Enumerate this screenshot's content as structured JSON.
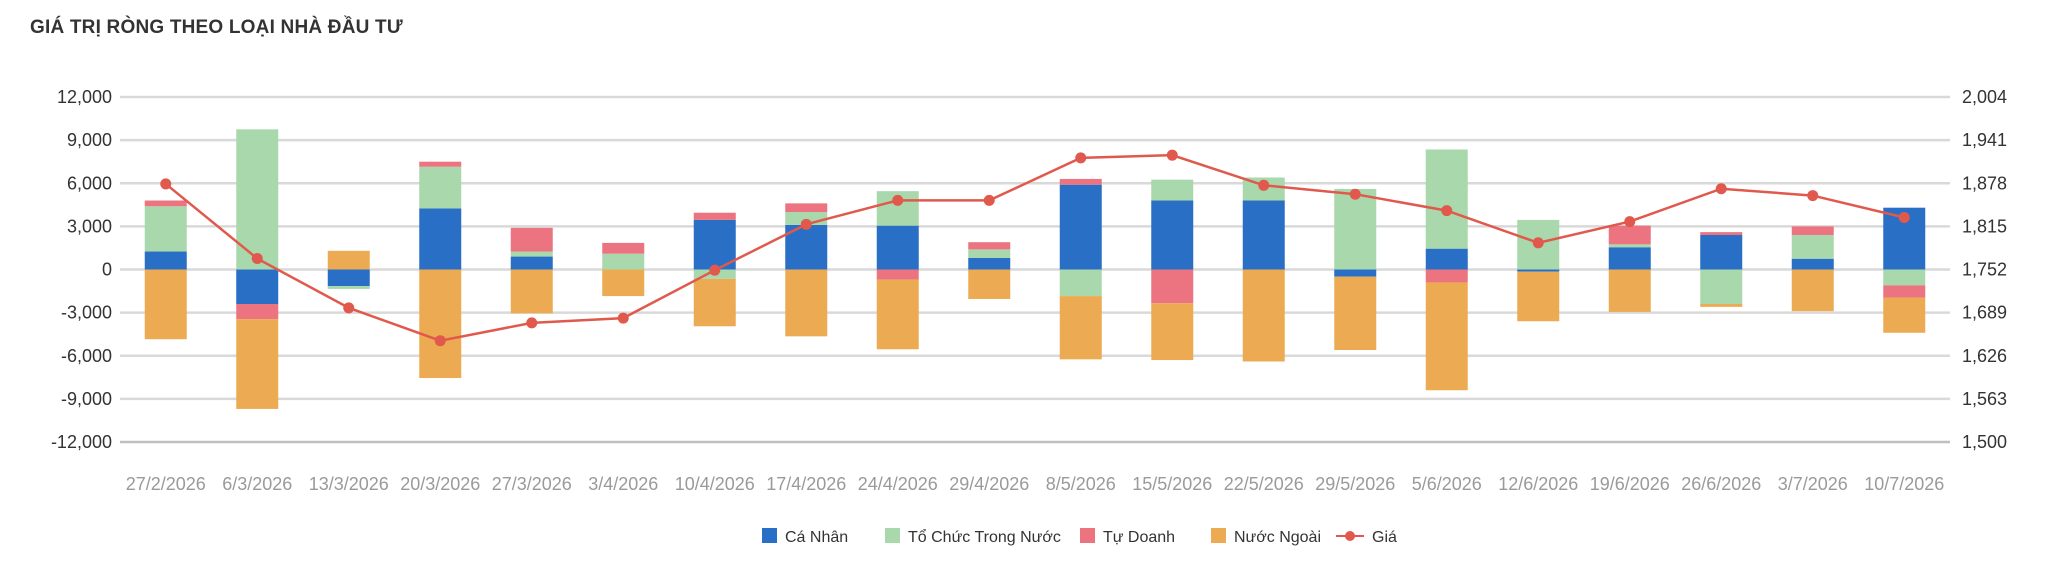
{
  "chart_data": {
    "type": "bar",
    "title": "GIÁ TRỊ RÒNG THEO LOẠI NHÀ ĐẦU TƯ",
    "categories": [
      "27/2/2026",
      "6/3/2026",
      "13/3/2026",
      "20/3/2026",
      "27/3/2026",
      "3/4/2026",
      "10/4/2026",
      "17/4/2026",
      "24/4/2026",
      "29/4/2026",
      "8/5/2026",
      "15/5/2026",
      "22/5/2026",
      "29/5/2026",
      "5/6/2026",
      "12/6/2026",
      "19/6/2026",
      "26/6/2026",
      "3/7/2026",
      "10/7/2026"
    ],
    "stacked": true,
    "series": [
      {
        "name": "Cá Nhân",
        "color": "#2a6fc6",
        "values": [
          1250,
          -2400,
          -1150,
          4250,
          900,
          0,
          3450,
          3100,
          3050,
          800,
          5900,
          4800,
          4800,
          -500,
          1450,
          -150,
          1550,
          2400,
          750,
          4300
        ]
      },
      {
        "name": "Tổ Chức Trong Nước",
        "color": "#a8d8ab",
        "values": [
          3150,
          9750,
          -200,
          2900,
          350,
          1100,
          -650,
          900,
          2400,
          600,
          -1850,
          1450,
          1600,
          5600,
          6900,
          3450,
          200,
          -2400,
          1650,
          -1100
        ]
      },
      {
        "name": "Tự Doanh",
        "color": "#ec7480",
        "values": [
          400,
          -1050,
          0,
          350,
          1650,
          750,
          500,
          600,
          -700,
          500,
          400,
          -2350,
          0,
          0,
          -900,
          0,
          1300,
          200,
          600,
          -850
        ]
      },
      {
        "name": "Nước Ngoài",
        "color": "#ecab52",
        "values": [
          -4850,
          -6250,
          1300,
          -7550,
          -3050,
          -1850,
          -3300,
          -4650,
          -4850,
          -2050,
          -4400,
          -3950,
          -6400,
          -5100,
          -7500,
          -3450,
          -2950,
          -200,
          -2900,
          -2450
        ]
      },
      {
        "name": "Giá",
        "type": "line",
        "axis": "right",
        "color": "#e0594c",
        "values": [
          1877,
          1768,
          1696,
          1648,
          1674,
          1681,
          1751,
          1818,
          1853,
          1853,
          1915,
          1919,
          1875,
          1862,
          1838,
          1791,
          1822,
          1870,
          1860,
          1828
        ]
      }
    ],
    "ylim": [
      -12000,
      12000
    ],
    "yticks": [
      "12,000",
      "9,000",
      "6,000",
      "3,000",
      "0",
      "-3,000",
      "-6,000",
      "-9,000",
      "-12,000"
    ],
    "y2lim": [
      1500,
      2004
    ],
    "y2ticks": [
      "2,004",
      "1,941",
      "1,878",
      "1,815",
      "1,752",
      "1,689",
      "1,626",
      "1,563",
      "1,500"
    ],
    "grid": true,
    "legend_position": "bottom"
  },
  "colors": {
    "grid": "#d9d9d9",
    "axis": "#bfbfbf"
  }
}
